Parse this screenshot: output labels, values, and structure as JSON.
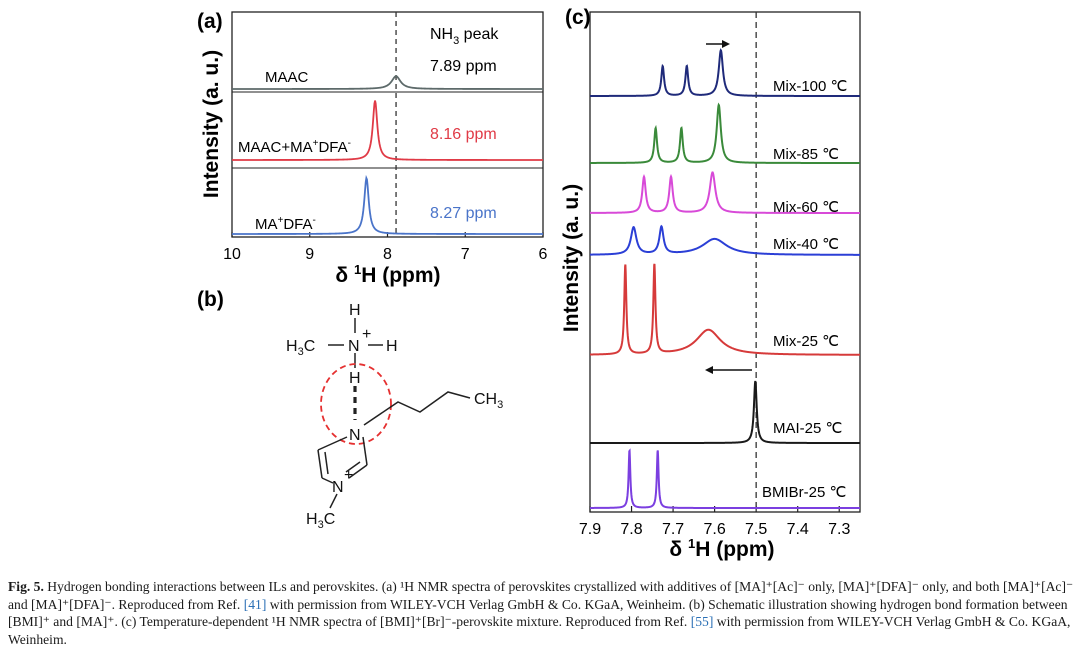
{
  "panels": {
    "a": {
      "label": "(a)"
    },
    "b": {
      "label": "(b)"
    },
    "c": {
      "label": "(c)"
    }
  },
  "chart_data": [
    {
      "panel": "(a)",
      "type": "line",
      "xlabel": "δ ¹H (ppm)",
      "ylabel": "Intensity (a. u.)",
      "xlim": [
        10,
        6
      ],
      "x_reversed": true,
      "xticks": [
        "10",
        "9",
        "8",
        "7",
        "6"
      ],
      "reference_line_ppm": 7.89,
      "annotations": {
        "nh3_prefix": "NH",
        "nh3_sub": "3",
        "nh3_suffix": " peak",
        "ppm_maac": "7.89 ppm",
        "ppm_mix": "8.16 ppm",
        "ppm_dfa": "8.27 ppm"
      },
      "colors": {
        "MAAC": "#5d6a6a",
        "MIX": "#e03a46",
        "DFA": "#4a74c9",
        "annot_mix": "#e03a46",
        "annot_dfa": "#4a74c9"
      },
      "series": [
        {
          "name": "MAAC",
          "label_parts": [
            "MAAC",
            "",
            ""
          ],
          "peaks": [
            {
              "ppm": 7.89,
              "height": 0.16,
              "width": 0.07
            }
          ]
        },
        {
          "name": "MAAC+MA+DFA-",
          "label_parts": [
            "MAAC+MA",
            "+",
            "DFA"
          ],
          "label_sup2": "-",
          "peaks": [
            {
              "ppm": 8.16,
              "height": 0.85,
              "width": 0.035
            }
          ]
        },
        {
          "name": "MA+DFA-",
          "label_parts": [
            "MA",
            "+",
            "DFA"
          ],
          "label_sup2": "-",
          "peaks": [
            {
              "ppm": 8.27,
              "height": 0.85,
              "width": 0.035
            }
          ]
        }
      ]
    },
    {
      "panel": "(c)",
      "type": "line",
      "xlabel": "δ ¹H (ppm)",
      "ylabel": "Intensity (a. u.)",
      "xlim": [
        7.9,
        7.25
      ],
      "x_reversed": true,
      "xticks": [
        "7.9",
        "7.8",
        "7.7",
        "7.6",
        "7.5",
        "7.4",
        "7.3"
      ],
      "reference_line_ppm": 7.5,
      "series": [
        {
          "name": "Mix-100 ℃",
          "color": "#1f2a7a",
          "peaks": [
            {
              "ppm": 7.725,
              "height": 0.62,
              "width": 0.004
            },
            {
              "ppm": 7.667,
              "height": 0.62,
              "width": 0.004
            },
            {
              "ppm": 7.585,
              "height": 0.95,
              "width": 0.006
            }
          ]
        },
        {
          "name": "Mix-85 ℃",
          "color": "#3a8a3a",
          "peaks": [
            {
              "ppm": 7.742,
              "height": 0.6,
              "width": 0.004
            },
            {
              "ppm": 7.68,
              "height": 0.6,
              "width": 0.004
            },
            {
              "ppm": 7.59,
              "height": 1.0,
              "width": 0.006
            }
          ]
        },
        {
          "name": "Mix-60 ℃",
          "color": "#d84ad8",
          "peaks": [
            {
              "ppm": 7.77,
              "height": 0.8,
              "width": 0.005
            },
            {
              "ppm": 7.705,
              "height": 0.8,
              "width": 0.005
            },
            {
              "ppm": 7.605,
              "height": 0.9,
              "width": 0.008
            }
          ]
        },
        {
          "name": "Mix-40 ℃",
          "color": "#2b3fd6",
          "peaks": [
            {
              "ppm": 7.795,
              "height": 0.85,
              "width": 0.008
            },
            {
              "ppm": 7.728,
              "height": 0.85,
              "width": 0.006
            },
            {
              "ppm": 7.6,
              "height": 0.5,
              "width": 0.035
            }
          ]
        },
        {
          "name": "Mix-25 ℃",
          "color": "#d63a3a",
          "peaks": [
            {
              "ppm": 7.815,
              "height": 1.0,
              "width": 0.003
            },
            {
              "ppm": 7.745,
              "height": 1.0,
              "width": 0.003
            },
            {
              "ppm": 7.615,
              "height": 0.28,
              "width": 0.035
            }
          ]
        },
        {
          "name": "MAI-25 ℃",
          "color": "#1a1a1a",
          "peaks": [
            {
              "ppm": 7.502,
              "height": 1.0,
              "width": 0.004
            }
          ]
        },
        {
          "name": "BMIBr-25 ℃",
          "color": "#7b3fe0",
          "peaks": [
            {
              "ppm": 7.805,
              "height": 1.0,
              "width": 0.0025
            },
            {
              "ppm": 7.737,
              "height": 1.0,
              "width": 0.0025
            }
          ]
        }
      ]
    }
  ],
  "structure": {
    "h_top": "H",
    "ch3_left": "H",
    "ch3_left_sub": "3",
    "ch3_left_c": "C",
    "n_plus": "N",
    "plus": "+",
    "h_right": "H",
    "h_bottom": "H",
    "ch3_chain": "CH",
    "ch3_chain_sub": "3",
    "n_ring1": "N",
    "n_ring2": "N",
    "ring_plus": "+",
    "h3c_bottom": "H",
    "h3c_sub": "3",
    "h3c_c": "C"
  },
  "caption": {
    "fig_no": "Fig. 5.",
    "text_1": " Hydrogen bonding interactions between ILs and perovskites. (a) ¹H NMR spectra of perovskites crystallized with additives of [MA]⁺[Ac]⁻ only, [MA]⁺[DFA]⁻ only, and both [MA]⁺[Ac]⁻ and [MA]⁺[DFA]⁻. Reproduced from Ref. ",
    "ref_1": "[41]",
    "text_2": " with permission from WILEY-VCH Verlag GmbH & Co. KGaA, Weinheim. (b) Schematic illustration showing hydrogen bond formation between [BMI]⁺ and [MA]⁺. (c) Temperature-dependent ¹H NMR spectra of [BMI]⁺[Br]⁻-perovskite mixture. Reproduced from Ref. ",
    "ref_2": "[55]",
    "text_3": " with permission from WILEY-VCH Verlag GmbH & Co. KGaA, Weinheim."
  }
}
